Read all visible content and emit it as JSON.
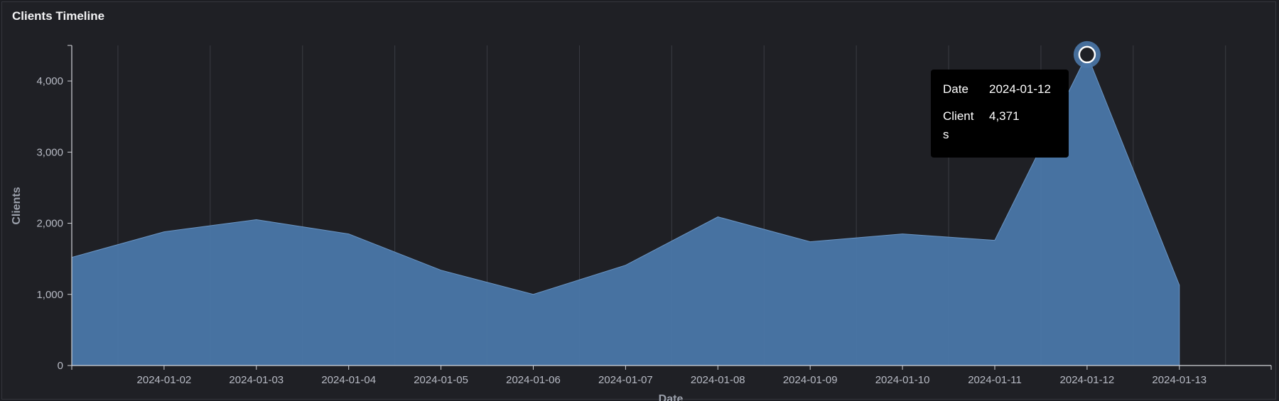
{
  "panel": {
    "title": "Clients Timeline"
  },
  "chart_data": {
    "type": "area",
    "title": "Clients Timeline",
    "xlabel": "Date",
    "ylabel": "Clients",
    "x": [
      "2024-01-01",
      "2024-01-02",
      "2024-01-03",
      "2024-01-04",
      "2024-01-05",
      "2024-01-06",
      "2024-01-07",
      "2024-01-08",
      "2024-01-09",
      "2024-01-10",
      "2024-01-11",
      "2024-01-12",
      "2024-01-13"
    ],
    "x_tick_labels": [
      "2024-01-02",
      "2024-01-03",
      "2024-01-04",
      "2024-01-05",
      "2024-01-06",
      "2024-01-07",
      "2024-01-08",
      "2024-01-09",
      "2024-01-10",
      "2024-01-11",
      "2024-01-12",
      "2024-01-13"
    ],
    "series": [
      {
        "values": [
          1520,
          1880,
          2050,
          1850,
          1340,
          1000,
          1410,
          2090,
          1740,
          1850,
          1760,
          4371,
          1130
        ]
      }
    ],
    "y_ticks": [
      0,
      1000,
      2000,
      3000,
      4000
    ],
    "y_tick_labels": [
      "0",
      "1,000",
      "2,000",
      "3,000",
      "4,000"
    ],
    "ylim": [
      0,
      4500
    ],
    "grid": "vertical",
    "color": "#4a77a8",
    "highlight_index": 11
  },
  "tooltip": {
    "rows": [
      {
        "key": "Date",
        "value": "2024-01-12"
      },
      {
        "key_line1": "Client",
        "key_line2": "s",
        "value": "4,371"
      }
    ]
  }
}
